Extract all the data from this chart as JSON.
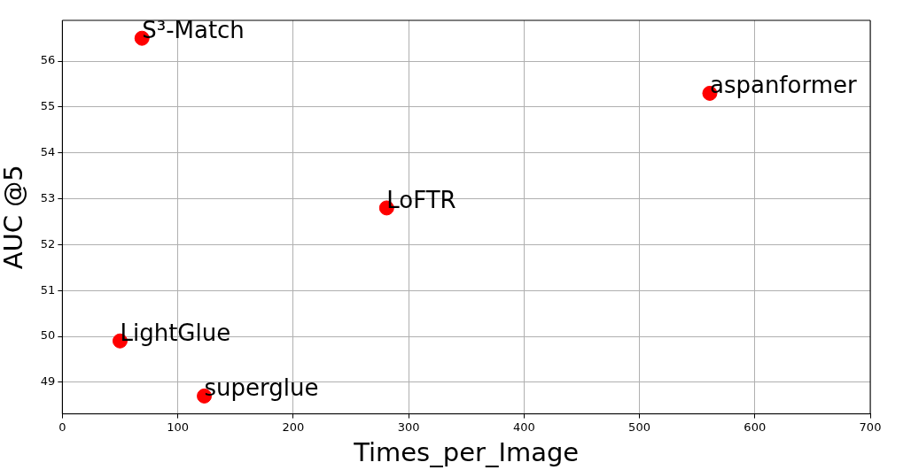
{
  "chart_data": {
    "type": "scatter",
    "xlabel": "Times_per_Image",
    "ylabel": "AUC @5",
    "x": [
      69,
      561,
      281,
      50,
      123
    ],
    "series": [
      {
        "color": "#ff0000",
        "values": [
          56.5,
          55.3,
          52.8,
          49.9,
          48.7
        ]
      }
    ],
    "xlim": [
      0,
      700
    ],
    "xticks": [
      0,
      100,
      200,
      300,
      400,
      500,
      600,
      700
    ],
    "ylim": [
      48.31,
      56.89
    ],
    "yticks": [
      49,
      50,
      51,
      52,
      53,
      54,
      55,
      56
    ],
    "grid": true,
    "marker": "circle",
    "legend": false,
    "annotations": [
      {
        "text": "S³-Match",
        "x": 69,
        "y": 56.5
      },
      {
        "text": "aspanformer",
        "x": 561,
        "y": 55.3
      },
      {
        "text": "LoFTR",
        "x": 281,
        "y": 52.8
      },
      {
        "text": "LightGlue",
        "x": 50,
        "y": 49.9
      },
      {
        "text": "superglue",
        "x": 123,
        "y": 48.7
      }
    ]
  }
}
